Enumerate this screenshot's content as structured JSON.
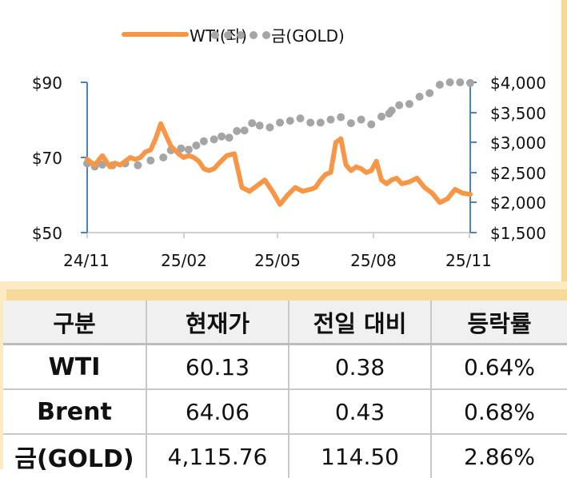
{
  "chart_data": {
    "type": "line",
    "title": "",
    "legend": {
      "position": "top",
      "entries": [
        {
          "label": "WTI(좌)",
          "style": "solid-line",
          "color": "#f79646"
        },
        {
          "label": "금(GOLD)",
          "style": "dotted",
          "color": "#a5a5a5"
        }
      ]
    },
    "x_ticks": [
      "24/11",
      "25/02",
      "25/05",
      "25/08",
      "25/11"
    ],
    "y_left": {
      "ticks": [
        "$90",
        "$70",
        "$50"
      ],
      "range": [
        50,
        90
      ],
      "label": ""
    },
    "y_right": {
      "ticks": [
        "$4,000",
        "$3,500",
        "$3,000",
        "$2,500",
        "$2,000",
        "$1,500"
      ],
      "range": [
        1500,
        4000
      ],
      "label": ""
    },
    "grid": false,
    "axis_color": "#4f81bd",
    "series": [
      {
        "name": "WTI(좌)",
        "axis": "left",
        "color": "#f79646",
        "x": [
          0,
          0.3,
          0.6,
          0.9,
          1.1,
          1.3,
          1.5,
          1.7,
          1.9,
          2.1,
          2.3,
          2.5,
          2.7,
          2.9,
          3.1,
          3.3,
          3.6,
          3.8,
          4.0,
          4.2,
          4.4,
          4.6,
          4.8,
          5.0,
          5.2,
          5.5,
          5.8,
          6.1,
          6.4,
          6.7,
          7.0,
          7.3,
          7.6,
          7.9,
          8.2,
          8.5,
          8.8,
          9.0,
          9.2,
          9.4,
          9.6,
          9.8,
          10.0,
          10.2,
          10.4,
          10.6,
          10.8,
          11.0,
          11.2,
          11.4,
          11.6,
          11.8,
          12.0,
          12.2
        ],
        "values": [
          69.5,
          68,
          70.5,
          67.5,
          68.5,
          68,
          69,
          70,
          69.5,
          70,
          71.5,
          72,
          75,
          79,
          76,
          73,
          71,
          70,
          70.5,
          70,
          69,
          67,
          66.5,
          67,
          68.5,
          70.5,
          71,
          62,
          61,
          62.5,
          64,
          61,
          57.5,
          60,
          62,
          61,
          61.5,
          62,
          64,
          65.5,
          66,
          74,
          75,
          68,
          66.5,
          67.5,
          67,
          66,
          66.5,
          69,
          64,
          63,
          64,
          64.5
        ]
      },
      {
        "name": "금(GOLD)",
        "axis": "right",
        "color": "#a5a5a5",
        "x": [
          0,
          0.3,
          0.6,
          1.0,
          1.5,
          2.0,
          2.5,
          3.0,
          3.3,
          3.7,
          4.0,
          4.3,
          4.6,
          5.0,
          5.3,
          5.6,
          5.9,
          6.2,
          6.5,
          6.8,
          7.2,
          7.6,
          8.0,
          8.4,
          8.8,
          9.2,
          9.6,
          10.0,
          10.4,
          10.8,
          11.2,
          11.6,
          11.9
        ],
        "values": [
          2650,
          2600,
          2630,
          2620,
          2650,
          2620,
          2700,
          2750,
          2870,
          2900,
          2880,
          2950,
          3020,
          3050,
          3100,
          3080,
          3190,
          3200,
          3320,
          3280,
          3250,
          3330,
          3360,
          3400,
          3330,
          3330,
          3380,
          3420,
          3320,
          3380,
          3300,
          3430,
          3480
        ]
      }
    ],
    "gold_series_tail": {
      "x": [
        12.0,
        12.3,
        12.7,
        13.1,
        13.5,
        13.9,
        14.3,
        14.7,
        15.1
      ],
      "values": [
        3530,
        3620,
        3640,
        3760,
        3820,
        3960,
        4000,
        4000,
        3990
      ]
    },
    "wti_series_tail": {
      "x": [
        12.4,
        12.7,
        13.0,
        13.3,
        13.6,
        13.9,
        14.2,
        14.5,
        14.8,
        15.1
      ],
      "values": [
        63,
        63.5,
        64.5,
        62,
        60.5,
        58,
        59,
        61.5,
        60.5,
        60.2
      ]
    },
    "x_domain_months": [
      0,
      12
    ],
    "note": "x expressed in months since 24/11 (0 = 24/11, 12 = 25/11) scaled to plotting width"
  },
  "table": {
    "headers": [
      "구분",
      "현재가",
      "전일 대비",
      "등락률"
    ],
    "rows": [
      {
        "name": "WTI",
        "price": "60.13",
        "change": "0.38",
        "rate": "0.64%"
      },
      {
        "name": "Brent",
        "price": "64.06",
        "change": "0.43",
        "rate": "0.68%"
      },
      {
        "name": "금(GOLD)",
        "price": "4,115.76",
        "change": "114.50",
        "rate": "2.86%"
      }
    ]
  }
}
